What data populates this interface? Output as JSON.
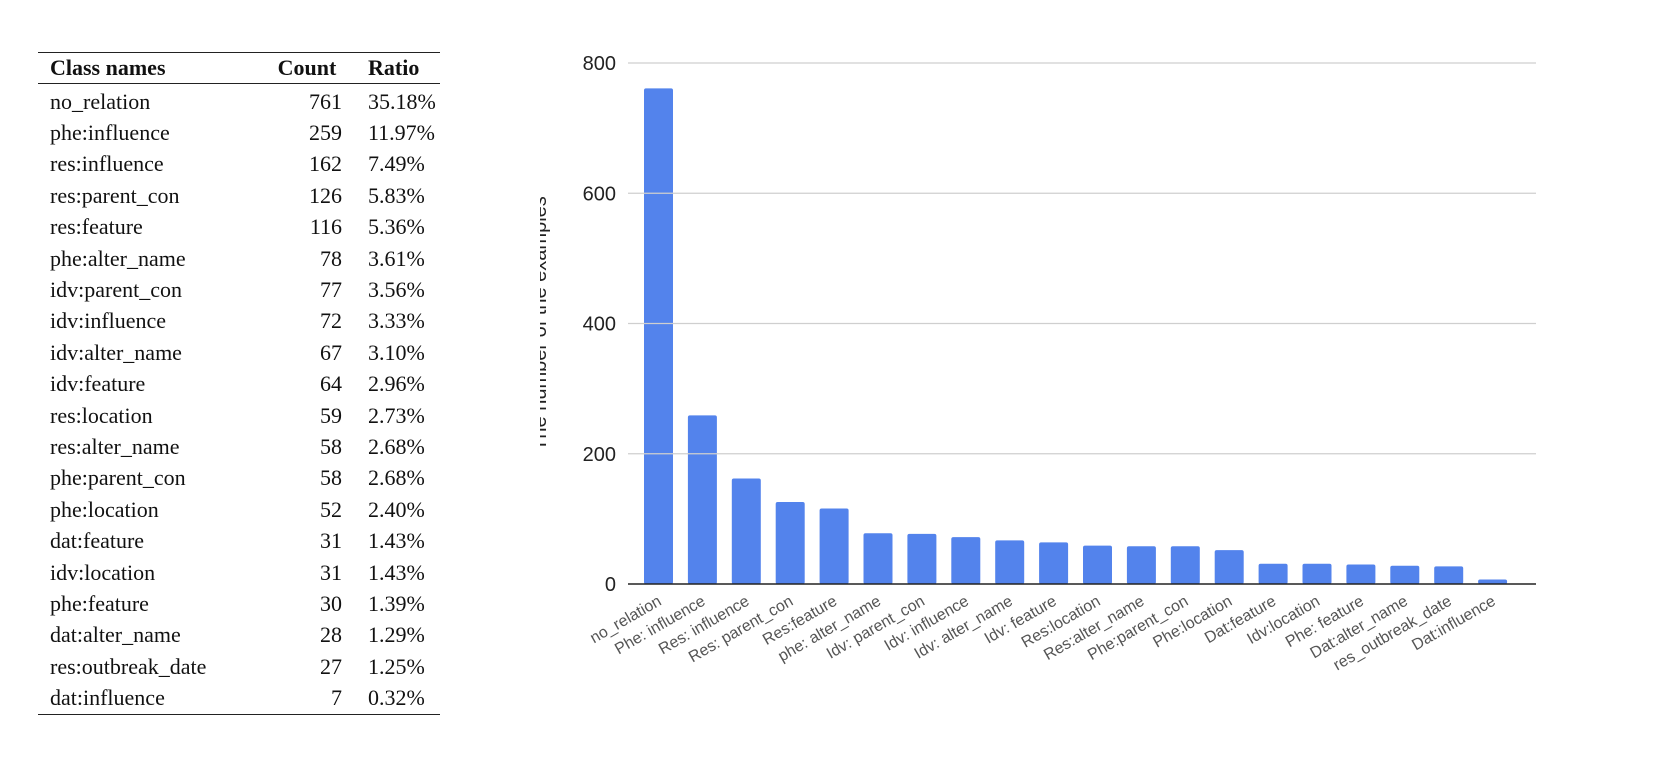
{
  "table": {
    "headers": [
      "Class names",
      "Count",
      "Ratio"
    ],
    "rows": [
      [
        "no_relation",
        "761",
        "35.18%"
      ],
      [
        "phe:influence",
        "259",
        "11.97%"
      ],
      [
        "res:influence",
        "162",
        "7.49%"
      ],
      [
        "res:parent_con",
        "126",
        "5.83%"
      ],
      [
        "res:feature",
        "116",
        "5.36%"
      ],
      [
        "phe:alter_name",
        "78",
        "3.61%"
      ],
      [
        "idv:parent_con",
        "77",
        "3.56%"
      ],
      [
        "idv:influence",
        "72",
        "3.33%"
      ],
      [
        "idv:alter_name",
        "67",
        "3.10%"
      ],
      [
        "idv:feature",
        "64",
        "2.96%"
      ],
      [
        "res:location",
        "59",
        "2.73%"
      ],
      [
        "res:alter_name",
        "58",
        "2.68%"
      ],
      [
        "phe:parent_con",
        "58",
        "2.68%"
      ],
      [
        "phe:location",
        "52",
        "2.40%"
      ],
      [
        "dat:feature",
        "31",
        "1.43%"
      ],
      [
        "idv:location",
        "31",
        "1.43%"
      ],
      [
        "phe:feature",
        "30",
        "1.39%"
      ],
      [
        "dat:alter_name",
        "28",
        "1.29%"
      ],
      [
        "res:outbreak_date",
        "27",
        "1.25%"
      ],
      [
        "dat:influence",
        "7",
        "0.32%"
      ]
    ]
  },
  "chart_data": {
    "type": "bar",
    "title": "",
    "xlabel": "",
    "ylabel": "The number of the examples",
    "ylim": [
      0,
      800
    ],
    "yticks": [
      0,
      200,
      400,
      600,
      800
    ],
    "grid": true,
    "bar_color": "#5383EC",
    "categories": [
      "no_relation",
      "Phe: influence",
      "Res: influence",
      "Res: parent_con",
      "Res:feature",
      "phe: alter_name",
      "Idv: parent_con",
      "Idv: influence",
      "Idv: alter_name",
      "Idv: feature",
      "Res:location",
      "Res:alter_name",
      "Phe:parent_con",
      "Phe:location",
      "Dat:feature",
      "Idv:location",
      "Phe: feature",
      "Dat:alter_name",
      "res_outbreak_date",
      "Dat:influence"
    ],
    "values": [
      761,
      259,
      162,
      126,
      116,
      78,
      77,
      72,
      67,
      64,
      59,
      58,
      58,
      52,
      31,
      31,
      30,
      28,
      27,
      7
    ]
  }
}
